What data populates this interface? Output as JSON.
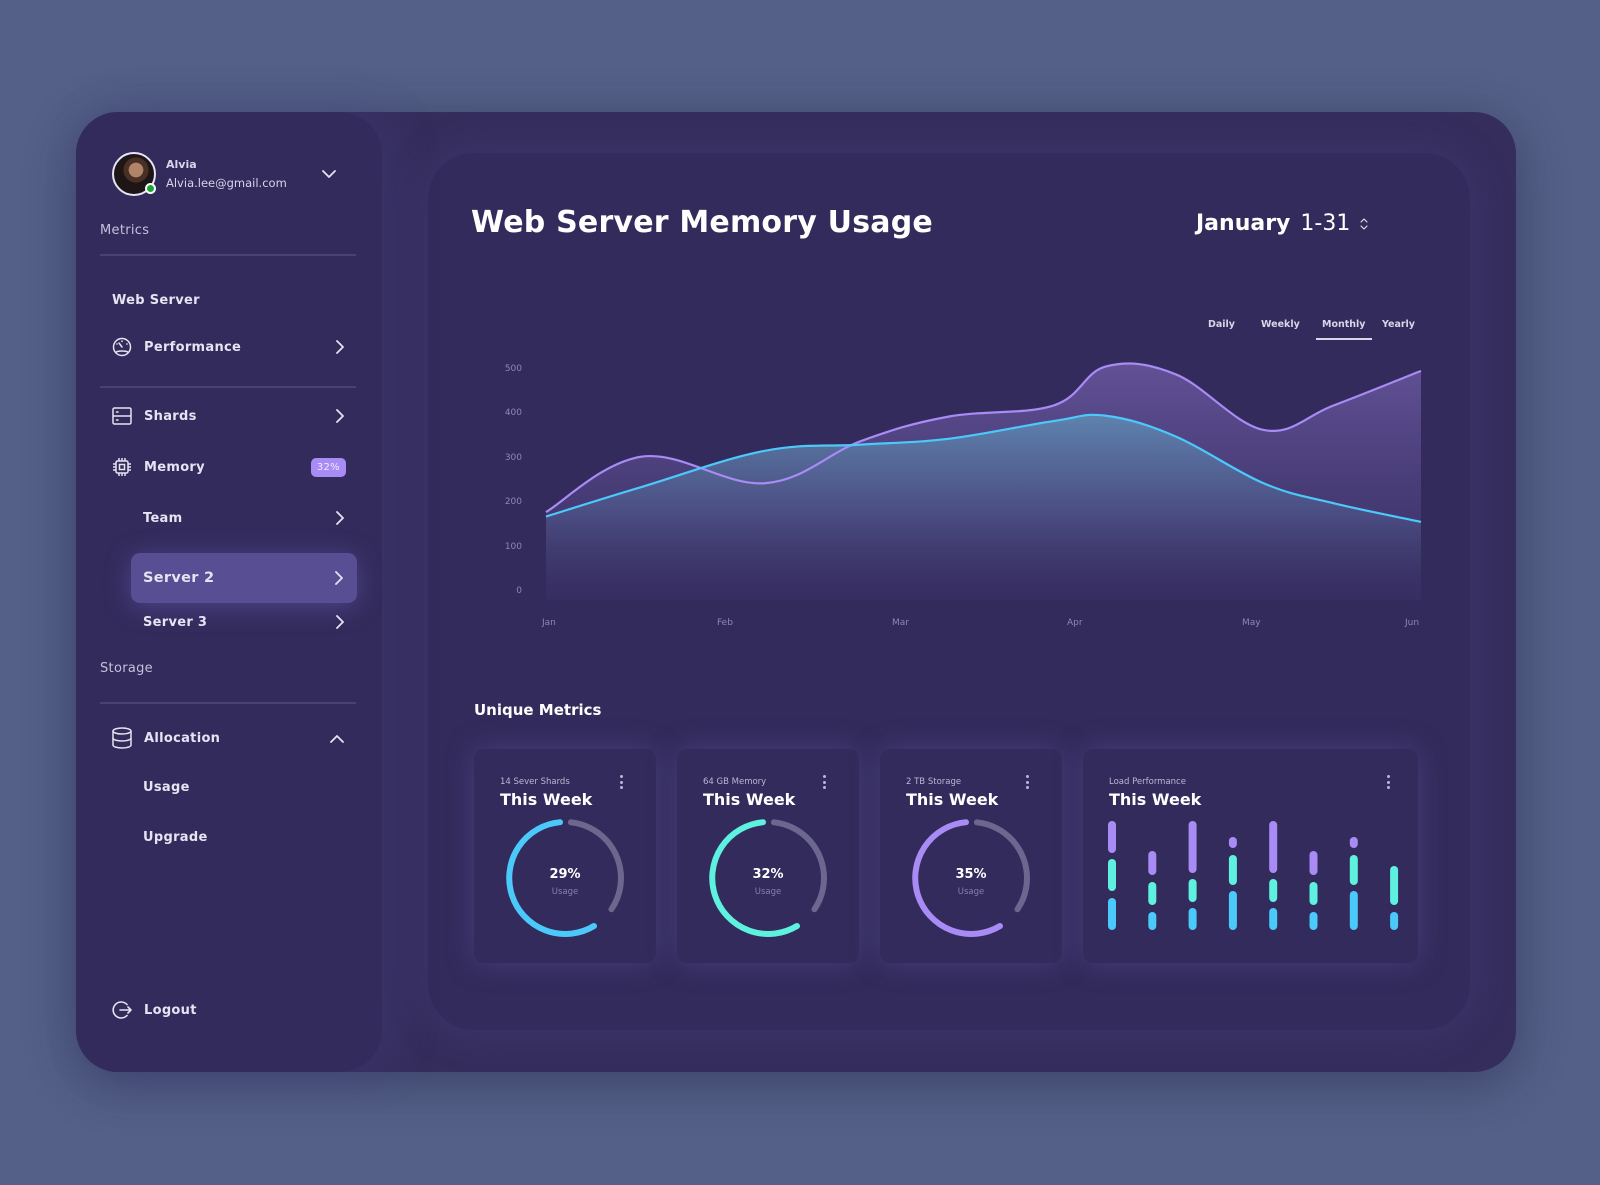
{
  "colors": {
    "page_bg": "#546087",
    "frame_bg": "#352d5c",
    "panel_bg": "#332b5b",
    "active_item": "#574e93",
    "badge": "#a98bf5",
    "cyan": "#4cc9fb",
    "teal": "#5ef1e0",
    "purple": "#a98bf5",
    "track": "#6b678e"
  },
  "profile": {
    "name": "Alvia",
    "email": "Alvia.lee@gmail.com",
    "status": "online"
  },
  "sidebar": {
    "metrics_label": "Metrics",
    "web_server_label": "Web Server",
    "items": [
      {
        "label": "Performance",
        "icon": "gauge-icon"
      },
      {
        "label": "Shards",
        "icon": "server-rack-icon"
      },
      {
        "label": "Memory",
        "icon": "cpu-chip-icon",
        "badge": "32%"
      },
      {
        "label": "Team"
      },
      {
        "label": "Server 2",
        "active": true
      },
      {
        "label": "Server 3"
      }
    ],
    "storage_label": "Storage",
    "storage_items": [
      {
        "label": "Allocation",
        "icon": "database-icon",
        "expanded": true
      },
      {
        "label": "Usage"
      },
      {
        "label": "Upgrade"
      }
    ],
    "logout_label": "Logout"
  },
  "main": {
    "title": "Web Server Memory Usage",
    "range_month": "January",
    "range_days": "1-31",
    "tabs": [
      "Daily",
      "Weekly",
      "Monthly",
      "Yearly"
    ],
    "active_tab": "Monthly",
    "metrics_title": "Unique Metrics",
    "cards": [
      {
        "subtitle": "14 Sever Shards",
        "title": "This Week",
        "value": "29%",
        "value_label": "Usage",
        "color": "#4cc9fb"
      },
      {
        "subtitle": "64 GB Memory",
        "title": "This Week",
        "value": "32%",
        "value_label": "Usage",
        "color": "#5ef1e0"
      },
      {
        "subtitle": "2 TB Storage",
        "title": "This Week",
        "value": "35%",
        "value_label": "Usage",
        "color": "#a98bf5"
      }
    ],
    "load_card": {
      "subtitle": "Load Performance",
      "title": "This Week",
      "bars": [
        {
          "purple": [
            0,
            32
          ],
          "teal": [
            38,
            70
          ],
          "blue": [
            77,
            109
          ]
        },
        {
          "purple": [
            30,
            54
          ],
          "teal": [
            61,
            84
          ],
          "blue": [
            91,
            109
          ]
        },
        {
          "purple": [
            0,
            52
          ],
          "teal": [
            58,
            81
          ],
          "blue": [
            87,
            109
          ]
        },
        {
          "purple": [
            16,
            27
          ],
          "teal": [
            34,
            64
          ],
          "blue": [
            70,
            109
          ]
        },
        {
          "purple": [
            0,
            52
          ],
          "teal": [
            58,
            81
          ],
          "blue": [
            87,
            109
          ]
        },
        {
          "purple": [
            30,
            54
          ],
          "teal": [
            61,
            84
          ],
          "blue": [
            91,
            109
          ]
        },
        {
          "purple": [
            16,
            27
          ],
          "teal": [
            34,
            64
          ],
          "blue": [
            70,
            109
          ]
        },
        {
          "teal": [
            45,
            84
          ],
          "blue": [
            91,
            109
          ]
        }
      ]
    }
  },
  "chart_data": {
    "type": "area",
    "title": "Web Server Memory Usage",
    "categories": [
      "Jan",
      "Feb",
      "Mar",
      "Apr",
      "May",
      "Jun"
    ],
    "yticks": [
      0,
      100,
      200,
      300,
      400,
      500
    ],
    "ylim": [
      0,
      500
    ],
    "grid": false,
    "legend": "none",
    "x": [
      0,
      0.55,
      1.25,
      1.8,
      2.3,
      2.9,
      3.2,
      3.6,
      4.1,
      4.5,
      5.0
    ],
    "series": [
      {
        "name": "series-purple",
        "color": "#a98bf5",
        "values": [
          180,
          305,
          245,
          340,
          395,
          420,
          508,
          490,
          365,
          420,
          498
        ]
      },
      {
        "name": "series-cyan",
        "color": "#4cc9fb",
        "values": [
          170,
          237,
          318,
          332,
          345,
          385,
          397,
          350,
          245,
          200,
          158
        ]
      }
    ]
  }
}
